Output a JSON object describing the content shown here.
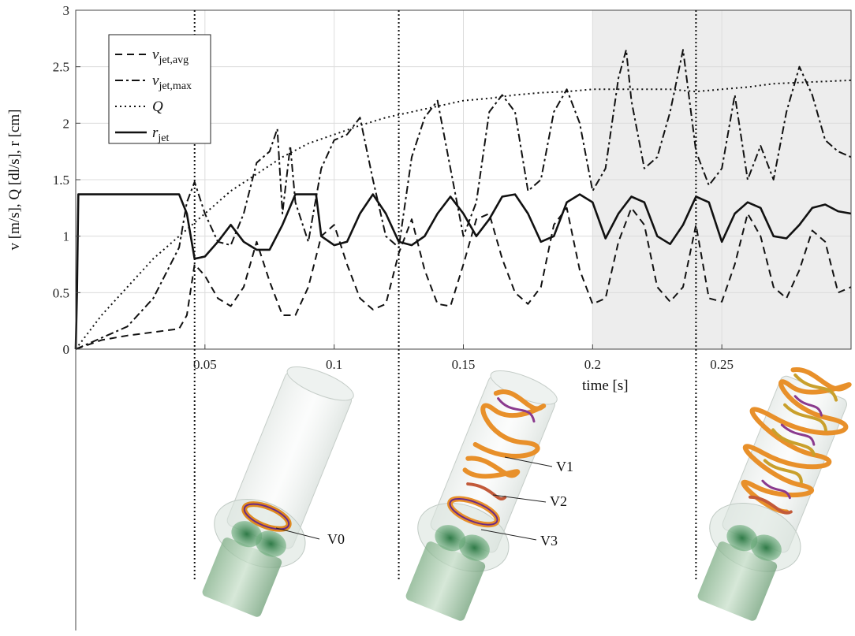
{
  "chart_data": {
    "type": "line",
    "xlabel": "time [s]",
    "ylabel": "v [m/s], Q [dl/s], r [cm]",
    "xlim": [
      0,
      0.3
    ],
    "ylim": [
      0,
      3
    ],
    "x_ticks": [
      0.05,
      0.1,
      0.15,
      0.2,
      0.25
    ],
    "x_tick_labels": [
      "0.05",
      "0.1",
      "0.15",
      "0.2",
      "0.25"
    ],
    "y_ticks": [
      0,
      0.5,
      1,
      1.5,
      2,
      2.5,
      3
    ],
    "y_tick_labels": [
      "0",
      "0.5",
      "1",
      "1.5",
      "2",
      "2.5",
      "3"
    ],
    "grid": true,
    "legend_position": "top-left",
    "shaded_region": [
      0.2,
      0.3
    ],
    "marker_lines": [
      0.046,
      0.125,
      0.24
    ],
    "series": [
      {
        "name": "v_jet,avg",
        "legend_main": "v",
        "legend_sub": "jet,avg",
        "style": "dashed",
        "x": [
          0,
          0.01,
          0.02,
          0.03,
          0.04,
          0.043,
          0.046,
          0.05,
          0.055,
          0.06,
          0.065,
          0.07,
          0.075,
          0.08,
          0.085,
          0.09,
          0.095,
          0.1,
          0.105,
          0.11,
          0.115,
          0.12,
          0.125,
          0.13,
          0.135,
          0.14,
          0.145,
          0.15,
          0.155,
          0.16,
          0.165,
          0.17,
          0.175,
          0.18,
          0.185,
          0.19,
          0.195,
          0.2,
          0.205,
          0.21,
          0.215,
          0.22,
          0.225,
          0.23,
          0.235,
          0.24,
          0.245,
          0.25,
          0.255,
          0.26,
          0.265,
          0.27,
          0.275,
          0.28,
          0.285,
          0.29,
          0.295,
          0.3
        ],
        "y": [
          0,
          0.08,
          0.12,
          0.15,
          0.18,
          0.3,
          0.75,
          0.65,
          0.45,
          0.38,
          0.55,
          0.95,
          0.6,
          0.3,
          0.3,
          0.55,
          1.0,
          1.1,
          0.75,
          0.45,
          0.35,
          0.4,
          0.85,
          1.15,
          0.7,
          0.4,
          0.38,
          0.75,
          1.15,
          1.2,
          0.8,
          0.5,
          0.4,
          0.55,
          1.1,
          1.25,
          0.7,
          0.4,
          0.45,
          0.95,
          1.25,
          1.1,
          0.55,
          0.42,
          0.55,
          1.1,
          0.45,
          0.42,
          0.75,
          1.2,
          1.0,
          0.55,
          0.45,
          0.7,
          1.05,
          0.95,
          0.5,
          0.55
        ]
      },
      {
        "name": "v_jet,max",
        "legend_main": "v",
        "legend_sub": "jet,max",
        "style": "dashdot",
        "x": [
          0,
          0.01,
          0.02,
          0.03,
          0.04,
          0.043,
          0.046,
          0.05,
          0.055,
          0.06,
          0.065,
          0.07,
          0.075,
          0.078,
          0.08,
          0.083,
          0.085,
          0.09,
          0.095,
          0.1,
          0.105,
          0.11,
          0.115,
          0.12,
          0.125,
          0.13,
          0.135,
          0.14,
          0.145,
          0.15,
          0.155,
          0.16,
          0.165,
          0.17,
          0.175,
          0.18,
          0.185,
          0.19,
          0.195,
          0.2,
          0.205,
          0.21,
          0.213,
          0.215,
          0.22,
          0.225,
          0.23,
          0.235,
          0.24,
          0.245,
          0.25,
          0.255,
          0.26,
          0.265,
          0.27,
          0.275,
          0.28,
          0.285,
          0.29,
          0.295,
          0.3
        ],
        "y": [
          0,
          0.1,
          0.2,
          0.45,
          0.9,
          1.3,
          1.48,
          1.2,
          0.95,
          0.92,
          1.2,
          1.65,
          1.75,
          1.95,
          1.2,
          1.8,
          1.3,
          0.95,
          1.6,
          1.85,
          1.9,
          2.05,
          1.5,
          1.0,
          0.9,
          1.7,
          2.05,
          2.2,
          1.6,
          1.0,
          1.3,
          2.1,
          2.25,
          2.1,
          1.4,
          1.5,
          2.1,
          2.3,
          2.0,
          1.4,
          1.6,
          2.4,
          2.65,
          2.2,
          1.6,
          1.7,
          2.1,
          2.65,
          1.75,
          1.45,
          1.6,
          2.25,
          1.5,
          1.8,
          1.5,
          2.1,
          2.5,
          2.25,
          1.85,
          1.75,
          1.7
        ]
      },
      {
        "name": "Q",
        "legend_main": "Q",
        "legend_sub": "",
        "style": "dotted",
        "x": [
          0,
          0.01,
          0.02,
          0.03,
          0.04,
          0.05,
          0.06,
          0.07,
          0.08,
          0.09,
          0.1,
          0.11,
          0.12,
          0.13,
          0.14,
          0.15,
          0.16,
          0.17,
          0.18,
          0.19,
          0.2,
          0.21,
          0.22,
          0.23,
          0.24,
          0.25,
          0.26,
          0.27,
          0.28,
          0.29,
          0.3
        ],
        "y": [
          0,
          0.3,
          0.55,
          0.8,
          1.0,
          1.2,
          1.4,
          1.55,
          1.7,
          1.82,
          1.9,
          1.98,
          2.05,
          2.1,
          2.15,
          2.2,
          2.22,
          2.25,
          2.27,
          2.28,
          2.3,
          2.3,
          2.3,
          2.3,
          2.28,
          2.3,
          2.32,
          2.35,
          2.36,
          2.37,
          2.38
        ]
      },
      {
        "name": "r_jet",
        "legend_main": "r",
        "legend_sub": "jet",
        "style": "solid",
        "x": [
          0,
          0.0005,
          0.001,
          0.04,
          0.043,
          0.046,
          0.05,
          0.055,
          0.06,
          0.065,
          0.07,
          0.075,
          0.08,
          0.085,
          0.09,
          0.093,
          0.095,
          0.1,
          0.105,
          0.11,
          0.115,
          0.12,
          0.125,
          0.13,
          0.135,
          0.14,
          0.145,
          0.15,
          0.155,
          0.16,
          0.165,
          0.17,
          0.175,
          0.18,
          0.185,
          0.19,
          0.195,
          0.2,
          0.205,
          0.21,
          0.215,
          0.22,
          0.225,
          0.23,
          0.235,
          0.24,
          0.245,
          0.25,
          0.255,
          0.26,
          0.265,
          0.27,
          0.275,
          0.28,
          0.285,
          0.29,
          0.295,
          0.3
        ],
        "y": [
          0,
          0.5,
          1.37,
          1.37,
          1.2,
          0.8,
          0.82,
          0.95,
          1.1,
          0.95,
          0.88,
          0.88,
          1.1,
          1.37,
          1.37,
          1.37,
          1.0,
          0.92,
          0.95,
          1.2,
          1.37,
          1.2,
          0.95,
          0.92,
          1.0,
          1.2,
          1.35,
          1.2,
          1.0,
          1.15,
          1.35,
          1.37,
          1.2,
          0.95,
          1.0,
          1.3,
          1.37,
          1.3,
          0.98,
          1.2,
          1.35,
          1.3,
          1.0,
          0.93,
          1.1,
          1.35,
          1.3,
          0.95,
          1.2,
          1.3,
          1.25,
          1.0,
          0.98,
          1.1,
          1.25,
          1.28,
          1.22,
          1.2
        ]
      }
    ]
  },
  "illustration_labels": [
    "V0",
    "V1",
    "V2",
    "V3"
  ]
}
